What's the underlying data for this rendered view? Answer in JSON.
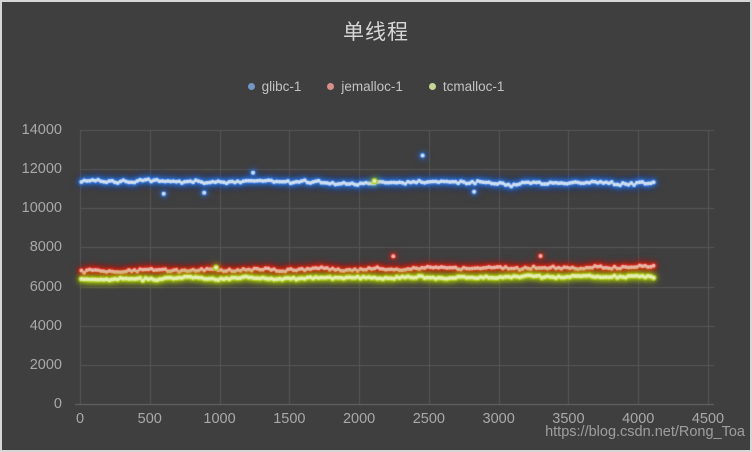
{
  "frame": {
    "background": "#3f3f3f",
    "border_color": "#d6d6d6",
    "gridline_color": "#575757",
    "axis_line_color": "#6b6b6b",
    "tick_label_color": "#a9a9a9"
  },
  "watermark": {
    "text": "https://blog.csdn.net/Rong_Toa"
  },
  "chart_data": {
    "type": "scatter",
    "title": "单线程",
    "xlabel": "",
    "ylabel": "",
    "legend_position": "top",
    "grid": true,
    "x_axis": {
      "min": 0,
      "max": 4500,
      "tick_step": 500,
      "ticks": [
        0,
        500,
        1000,
        1500,
        2000,
        2500,
        3000,
        3500,
        4000,
        4500
      ]
    },
    "y_axis": {
      "min": 0,
      "max": 14000,
      "tick_step": 2000,
      "ticks": [
        0,
        2000,
        4000,
        6000,
        8000,
        10000,
        12000,
        14000
      ]
    },
    "series": [
      {
        "name": "glibc-1",
        "legend_color": "#7297c5",
        "core_color": "#cfdff2",
        "glow_color": "#2e6fd4",
        "x_start": 10,
        "x_end": 4110,
        "x_step": 20,
        "baseline_start": 11380,
        "baseline_end": 11260,
        "noise": 85,
        "seed": 7,
        "outliers": [
          [
            600,
            10740
          ],
          [
            890,
            10800
          ],
          [
            1240,
            11820
          ],
          [
            2455,
            12700
          ],
          [
            2824,
            10850
          ]
        ]
      },
      {
        "name": "jemalloc-1",
        "legend_color": "#d98f8c",
        "core_color": "#eeb8b4",
        "glow_color": "#d2261a",
        "x_start": 10,
        "x_end": 4110,
        "x_step": 20,
        "baseline_start": 6800,
        "baseline_end": 7010,
        "noise": 75,
        "seed": 13,
        "outliers": [
          [
            2245,
            7550
          ],
          [
            3300,
            7560
          ]
        ]
      },
      {
        "name": "tcmalloc-1",
        "legend_color": "#c6d795",
        "core_color": "#e6efb2",
        "glow_color": "#a8c816",
        "x_start": 10,
        "x_end": 4110,
        "x_step": 20,
        "baseline_start": 6380,
        "baseline_end": 6520,
        "noise": 65,
        "seed": 21,
        "outliers": [
          [
            975,
            6980
          ],
          [
            2110,
            11400
          ]
        ]
      }
    ]
  }
}
